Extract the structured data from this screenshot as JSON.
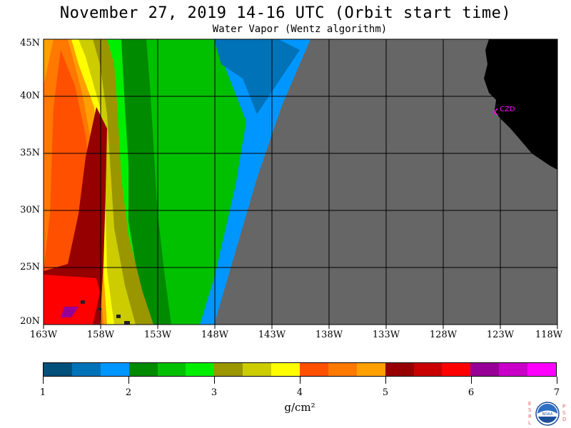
{
  "header": {
    "title": "November 27, 2019  14-16 UTC  (Orbit start time)",
    "subtitle": "Water Vapor (Wentz algorithm)"
  },
  "map": {
    "lat_labels": [
      "45N",
      "40N",
      "35N",
      "30N",
      "25N",
      "20N"
    ],
    "lon_labels": [
      "163W",
      "158W",
      "153W",
      "148W",
      "143W",
      "138W",
      "133W",
      "128W",
      "123W",
      "118W"
    ],
    "station_label": "CZD",
    "colors": {
      "no_data": "#666666",
      "land": "#000000",
      "grid": "#000000",
      "station": "#ff00ff"
    }
  },
  "colorbar": {
    "colors": [
      "#00507a",
      "#0072b8",
      "#0096ff",
      "#008a00",
      "#00c000",
      "#00ee00",
      "#9a9600",
      "#cccc00",
      "#ffff00",
      "#ff5000",
      "#ff7800",
      "#ffa000",
      "#960000",
      "#c80000",
      "#ff0000",
      "#960096",
      "#c800c8",
      "#ff00ff"
    ],
    "tick_labels": [
      "1",
      "2",
      "3",
      "4",
      "5",
      "6",
      "7"
    ],
    "units": "g/cm²"
  },
  "logo": {
    "left_letters": [
      "E",
      "S",
      "R",
      "L"
    ],
    "right_letters": [
      "P",
      "S",
      "D"
    ],
    "emblem_text": "NOAA"
  }
}
